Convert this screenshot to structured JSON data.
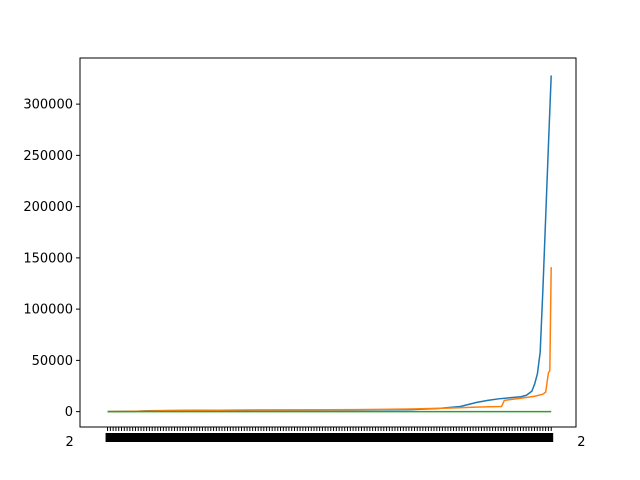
{
  "chart_data": {
    "type": "line",
    "title": "",
    "xlabel": "",
    "ylabel": "",
    "ylim": [
      -15000,
      345000
    ],
    "grid": false,
    "legend": "none",
    "yticks": [
      0,
      50000,
      100000,
      150000,
      200000,
      250000,
      300000
    ],
    "ytick_labels": [
      "0",
      "50000",
      "100000",
      "150000",
      "200000",
      "250000",
      "300000"
    ],
    "x_tick_note": "dense overlapping date tick labels (unreadable)",
    "x_tick_count": 160,
    "x_tick_text_first": "2",
    "x_tick_text_last": "2",
    "xlim_index": [
      -10,
      170
    ],
    "series": [
      {
        "color": "#1f77b4",
        "points": [
          [
            0,
            0
          ],
          [
            10,
            300
          ],
          [
            15,
            900
          ],
          [
            30,
            1200
          ],
          [
            50,
            1400
          ],
          [
            70,
            1500
          ],
          [
            90,
            1600
          ],
          [
            100,
            1800
          ],
          [
            110,
            2000
          ],
          [
            120,
            3000
          ],
          [
            128,
            5000
          ],
          [
            134,
            9000
          ],
          [
            138,
            11000
          ],
          [
            142,
            12500
          ],
          [
            146,
            13500
          ],
          [
            150,
            14500
          ],
          [
            152,
            16000
          ],
          [
            154,
            20000
          ],
          [
            155,
            27000
          ],
          [
            156,
            37000
          ],
          [
            157,
            58000
          ],
          [
            158,
            120000
          ],
          [
            159,
            190000
          ],
          [
            160,
            260000
          ],
          [
            161,
            328000
          ]
        ]
      },
      {
        "color": "#ff7f0e",
        "points": [
          [
            0,
            0
          ],
          [
            20,
            800
          ],
          [
            50,
            1600
          ],
          [
            70,
            1700
          ],
          [
            90,
            2000
          ],
          [
            110,
            2500
          ],
          [
            125,
            3500
          ],
          [
            135,
            4500
          ],
          [
            143,
            5000
          ],
          [
            144,
            11000
          ],
          [
            150,
            13000
          ],
          [
            155,
            15000
          ],
          [
            158,
            17000
          ],
          [
            159,
            19000
          ],
          [
            160,
            38000
          ],
          [
            160.5,
            40000
          ],
          [
            161,
            141000
          ]
        ]
      },
      {
        "color": "#2ca02c",
        "points": [
          [
            0,
            0
          ],
          [
            161,
            0
          ]
        ]
      }
    ]
  }
}
